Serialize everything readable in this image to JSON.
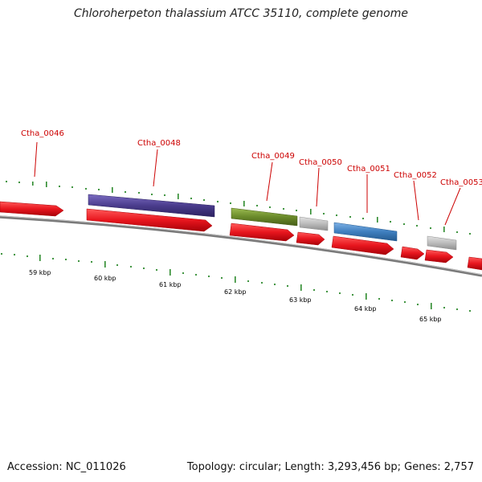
{
  "header": {
    "title": "Chloroherpeton thalassium ATCC 35110, complete genome"
  },
  "footer": {
    "accession": "Accession: NC_011026",
    "summary": "Topology: circular; Length: 3,293,456 bp; Genes: 2,757"
  },
  "colors": {
    "backbone": "#7a7a7a",
    "tick": "#2e8b2e",
    "label": "#cc0000",
    "forward_gene": "#e8161e",
    "reverse_gene": "#e8161e",
    "purple_feature": "#4a3c8c",
    "green_feature": "#6a8a2a",
    "grey_feature": "#b8b8b8",
    "blue_feature": "#3f7fbf"
  },
  "scale": {
    "unit": "kbp",
    "ticks": [
      "59 kbp",
      "60 kbp",
      "61 kbp",
      "62 kbp",
      "63 kbp",
      "64 kbp",
      "65 kbp"
    ]
  },
  "gene_labels": [
    "Ctha_0046",
    "Ctha_0048",
    "Ctha_0049",
    "Ctha_0050",
    "Ctha_0051",
    "Ctha_0052",
    "Ctha_0053"
  ]
}
